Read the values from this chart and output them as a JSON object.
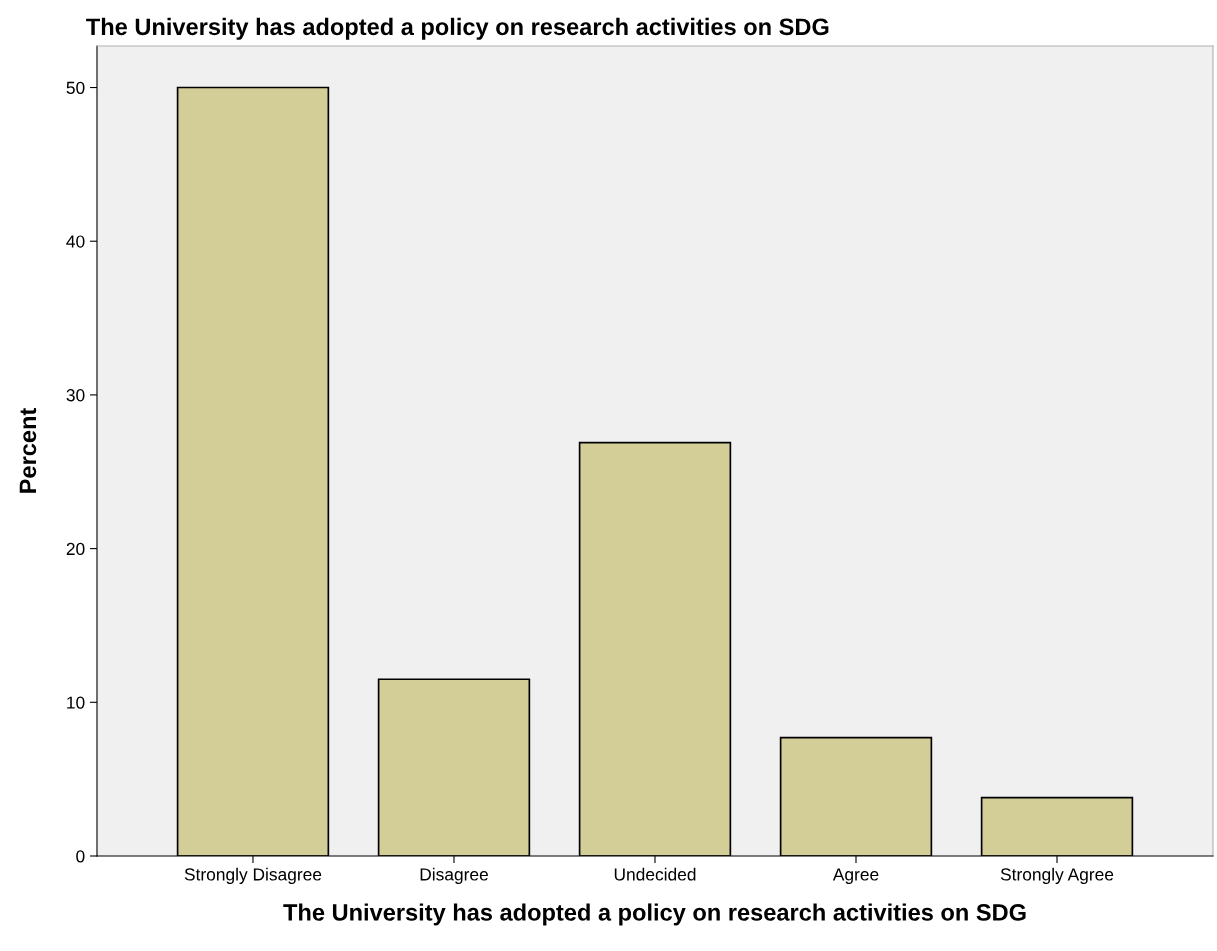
{
  "chart_data": {
    "type": "bar",
    "title": "The University has adopted a policy on research activities on SDG",
    "xlabel": "The University has adopted a policy on research activities on SDG",
    "ylabel": "Percent",
    "categories": [
      "Strongly Disagree",
      "Disagree",
      "Undecided",
      "Agree",
      "Strongly Agree"
    ],
    "values": [
      50,
      11.5,
      26.9,
      7.7,
      3.8
    ],
    "color": "#d3ce97",
    "ylim": [
      0,
      52.7
    ],
    "yticks": [
      0,
      10,
      20,
      30,
      40,
      50
    ],
    "grid": false
  }
}
